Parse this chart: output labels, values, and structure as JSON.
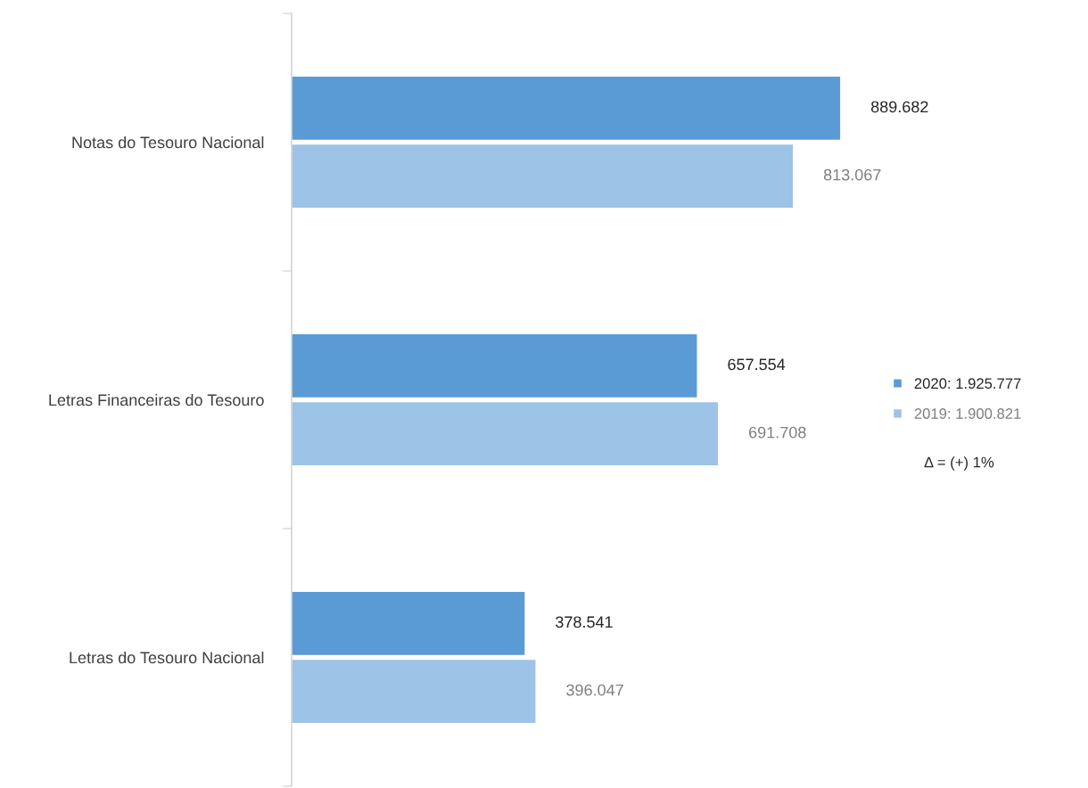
{
  "chart_data": {
    "type": "bar",
    "orientation": "horizontal",
    "categories": [
      "Notas do Tesouro Nacional",
      "Letras Financeiras do Tesouro",
      "Letras do Tesouro Nacional"
    ],
    "series": [
      {
        "name": "2020: 1.925.777",
        "color": "#5b9bd5",
        "values": [
          889682,
          657554,
          378541
        ],
        "value_labels": [
          "889.682",
          "657.554",
          "378.541"
        ]
      },
      {
        "name": "2019: 1.900.821",
        "color": "#9dc3e6",
        "values": [
          813067,
          691708,
          396047
        ],
        "value_labels": [
          "813.067",
          "691.708",
          "396.047"
        ]
      }
    ],
    "legend": "right",
    "grid": false,
    "annotations": [
      "Δ = (+) 1%"
    ]
  }
}
